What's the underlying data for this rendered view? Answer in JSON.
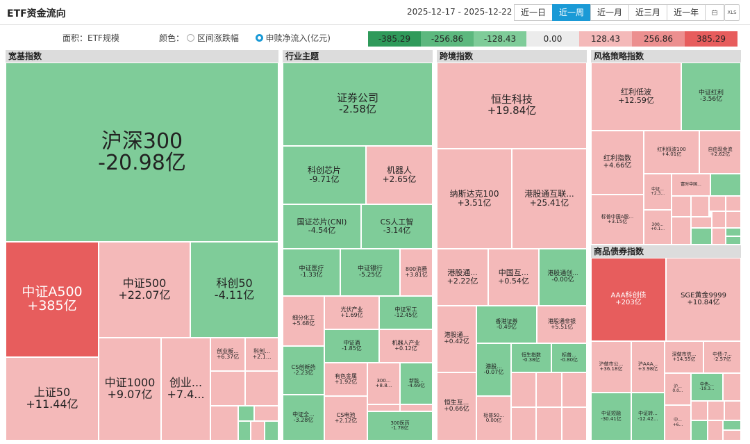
{
  "title": "ETF资金流向",
  "date_range": "2025-12-17 - 2025-12-22",
  "tabs": [
    {
      "label": "近一日"
    },
    {
      "label": "近一周",
      "active": true
    },
    {
      "label": "近一月"
    },
    {
      "label": "近三月"
    },
    {
      "label": "近一年"
    }
  ],
  "calendar_icon": "calendar-icon",
  "export_label": "XLS",
  "options": {
    "area_label": "面积：",
    "area_value": "ETF规模",
    "color_label": "颜色：",
    "color_opt1": "区间涨跌幅",
    "color_opt2": "申赎净流入(亿元)",
    "selected": "申赎净流入(亿元)"
  },
  "legend": [
    {
      "label": "-385.29",
      "color": "#2f9a5a"
    },
    {
      "label": "-256.86",
      "color": "#5cb87e"
    },
    {
      "label": "-128.43",
      "color": "#7fcc99"
    },
    {
      "label": "0.00",
      "color": "#ececec"
    },
    {
      "label": "128.43",
      "color": "#f4b9b9"
    },
    {
      "label": "256.86",
      "color": "#ec8f8f"
    },
    {
      "label": "385.29",
      "color": "#e75d5d"
    }
  ],
  "colors": {
    "r1": "#f4b9b9",
    "r2": "#ec8f8f",
    "r3": "#e75d5d",
    "g1": "#7fcc99",
    "g2": "#5cb87e",
    "g3": "#2f9a5a"
  },
  "sections": [
    {
      "name": "宽基指数",
      "tiles": [
        {
          "name": "沪深300",
          "value": "-20.98亿"
        },
        {
          "name": "中证A500",
          "value": "+385亿"
        },
        {
          "name": "中证500",
          "value": "+22.07亿"
        },
        {
          "name": "科创50",
          "value": "-4.11亿"
        },
        {
          "name": "上证50",
          "value": "+11.44亿"
        },
        {
          "name": "中证1000",
          "value": "+9.07亿"
        },
        {
          "name": "创业...",
          "value": "+7.4..."
        },
        {
          "name": "创业板...",
          "value": "+6.37亿"
        },
        {
          "name": "科创...",
          "value": "+2.1..."
        }
      ]
    },
    {
      "name": "行业主题",
      "tiles": [
        {
          "name": "证券公司",
          "value": "-2.58亿"
        },
        {
          "name": "科创芯片",
          "value": "-9.71亿"
        },
        {
          "name": "机器人",
          "value": "+2.65亿"
        },
        {
          "name": "国证芯片(CNI)",
          "value": "-4.54亿"
        },
        {
          "name": "CS人工智",
          "value": "-3.14亿"
        },
        {
          "name": "中证医疗",
          "value": "-1.33亿"
        },
        {
          "name": "中证银行",
          "value": "-5.25亿"
        },
        {
          "name": "800消费",
          "value": "+3.81亿"
        },
        {
          "name": "细分化工",
          "value": "+5.68亿"
        },
        {
          "name": "光伏产业",
          "value": "+1.69亿"
        },
        {
          "name": "中证军工",
          "value": "-12.45亿"
        },
        {
          "name": "中证酒",
          "value": "-1.85亿"
        },
        {
          "name": "机器人产业",
          "value": "+0.12亿"
        },
        {
          "name": "CS创新药",
          "value": "-2.23亿"
        },
        {
          "name": "有色金属",
          "value": "+1.92亿"
        },
        {
          "name": "300...",
          "value": "+8.8..."
        },
        {
          "name": "新能...",
          "value": "-4.69亿"
        },
        {
          "name": "中证全...",
          "value": "-3.28亿"
        },
        {
          "name": "CS电池",
          "value": "+2.12亿"
        },
        {
          "name": "300医药",
          "value": "-1.78亿"
        }
      ]
    },
    {
      "name": "跨境指数",
      "tiles": [
        {
          "name": "恒生科技",
          "value": "+19.84亿"
        },
        {
          "name": "纳斯达克100",
          "value": "+3.51亿"
        },
        {
          "name": "港股通互联...",
          "value": "+25.41亿"
        },
        {
          "name": "港股通...",
          "value": "+2.22亿"
        },
        {
          "name": "中国互...",
          "value": "+0.54亿"
        },
        {
          "name": "港股通创...",
          "value": "-0.00亿"
        },
        {
          "name": "香港证券",
          "value": "-0.49亿"
        },
        {
          "name": "港股通非银",
          "value": "+5.51亿"
        },
        {
          "name": "港股通...",
          "value": "+0.42亿"
        },
        {
          "name": "港股...",
          "value": "-0.07亿"
        },
        {
          "name": "恒生指数",
          "value": "-0.38亿"
        },
        {
          "name": "标普...",
          "value": "-0.80亿"
        },
        {
          "name": "恒生互...",
          "value": "+0.66亿"
        },
        {
          "name": "标普50...",
          "value": "0.00亿"
        }
      ]
    },
    {
      "name": "风格策略指数",
      "tiles": [
        {
          "name": "红利低波",
          "value": "+12.59亿"
        },
        {
          "name": "中证红利",
          "value": "-3.56亿"
        },
        {
          "name": "红利指数",
          "value": "+4.66亿"
        },
        {
          "name": "红利低波100",
          "value": "+4.01亿"
        },
        {
          "name": "自由现金流",
          "value": "+2.62亿"
        },
        {
          "name": "富时中国...",
          "value": ""
        },
        {
          "name": "中证...",
          "value": "+2.3..."
        },
        {
          "name": "标普中国A股...",
          "value": "+3.15亿"
        },
        {
          "name": "300...",
          "value": "+0.1..."
        }
      ]
    },
    {
      "name": "商品债券指数",
      "tiles": [
        {
          "name": "AAA科创债",
          "value": "+203亿"
        },
        {
          "name": "SGE黄金9999",
          "value": "+10.84亿"
        },
        {
          "name": "沪做市公...",
          "value": "+36.18亿"
        },
        {
          "name": "沪AAA...",
          "value": "+3.98亿"
        },
        {
          "name": "深做市信...",
          "value": "+14.55亿"
        },
        {
          "name": "中债-7...",
          "value": "-2.57亿"
        },
        {
          "name": "沪...",
          "value": "0.0..."
        },
        {
          "name": "中债-...",
          "value": "-19.3..."
        },
        {
          "name": "中证短融",
          "value": "-30.41亿"
        },
        {
          "name": "中证转...",
          "value": "-12.42..."
        },
        {
          "name": "中...",
          "value": "+6..."
        }
      ]
    }
  ]
}
